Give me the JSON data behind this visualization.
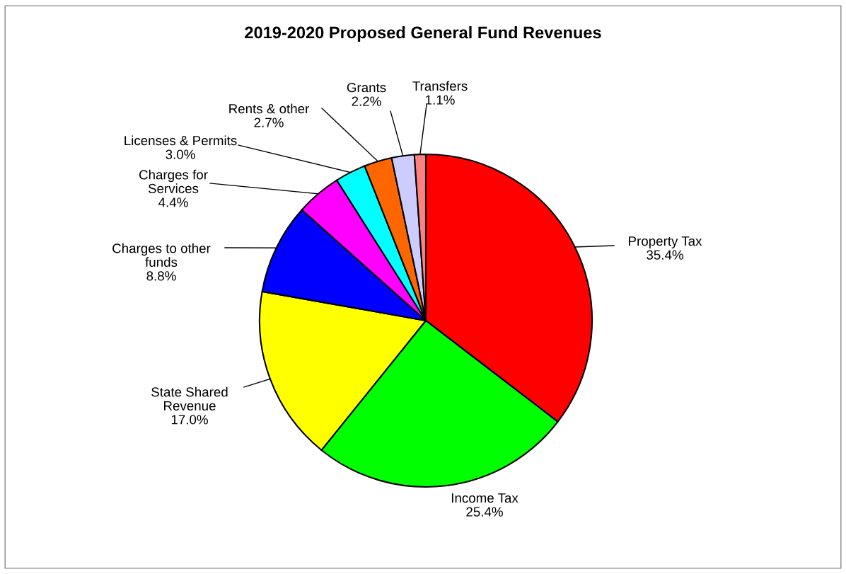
{
  "chart_data": {
    "type": "pie",
    "title": "2019-2020 Proposed General Fund Revenues",
    "categories": [
      "Property Tax",
      "Income Tax",
      "State Shared\nRevenue",
      "Charges to other\nfunds",
      "Charges for\nServices",
      "Licenses & Permits",
      "Rents & other",
      "Grants",
      "Transfers"
    ],
    "values": [
      35.4,
      25.4,
      17.0,
      8.8,
      4.4,
      3.0,
      2.7,
      2.2,
      1.1
    ],
    "value_labels": [
      "35.4%",
      "25.4%",
      "17.0%",
      "8.8%",
      "4.4%",
      "3.0%",
      "2.7%",
      "2.2%",
      "1.1%"
    ],
    "colors": [
      "#ff0000",
      "#00ff00",
      "#ffff00",
      "#0000ff",
      "#ff00ff",
      "#00ffff",
      "#ff6600",
      "#ccccff",
      "#ff8080"
    ],
    "legend": false
  }
}
